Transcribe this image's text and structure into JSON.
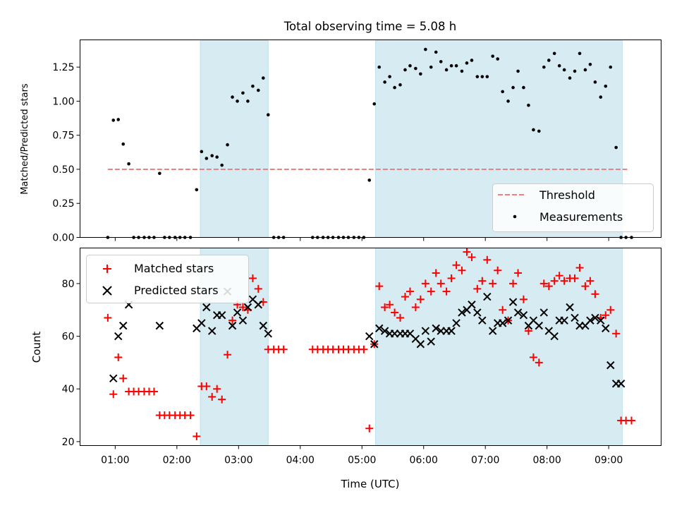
{
  "figure": {
    "title": "Total observing time = 5.08 h",
    "xlabel": "Time (UTC)"
  },
  "chart_data": [
    {
      "type": "scatter",
      "ylabel": "Matched/Predicted stars",
      "xlim": [
        0.43,
        9.85
      ],
      "ylim": [
        0,
        1.45
      ],
      "grid": false,
      "legend": {
        "position": "lower-right",
        "entries": [
          "Threshold",
          "Measurements"
        ]
      },
      "yticks": [
        0,
        0.25,
        0.5,
        0.75,
        1.0,
        1.25
      ],
      "ytick_labels": [
        "0.00",
        "0.25",
        "0.50",
        "0.75",
        "1.00",
        "1.25"
      ],
      "shaded_spans": [
        [
          2.38,
          3.48
        ],
        [
          5.22,
          9.22
        ]
      ],
      "threshold": {
        "name": "Threshold",
        "y": 0.5,
        "x_range": [
          0.88,
          9.3
        ],
        "color": "#f08080",
        "style": "dashed"
      },
      "series": [
        {
          "name": "Measurements",
          "color": "#000000",
          "marker": "dot",
          "x": [
            0.88,
            0.97,
            1.05,
            1.13,
            1.22,
            1.3,
            1.38,
            1.47,
            1.55,
            1.63,
            1.72,
            1.8,
            1.88,
            1.97,
            2.05,
            2.13,
            2.22,
            2.32,
            2.4,
            2.48,
            2.57,
            2.65,
            2.73,
            2.82,
            2.9,
            2.98,
            3.07,
            3.15,
            3.23,
            3.32,
            3.4,
            3.48,
            3.57,
            3.65,
            3.73,
            4.2,
            4.28,
            4.37,
            4.45,
            4.53,
            4.62,
            4.7,
            4.78,
            4.87,
            4.95,
            5.03,
            5.12,
            5.2,
            5.28,
            5.37,
            5.45,
            5.53,
            5.62,
            5.7,
            5.78,
            5.87,
            5.95,
            6.03,
            6.12,
            6.2,
            6.28,
            6.37,
            6.45,
            6.53,
            6.62,
            6.7,
            6.78,
            6.87,
            6.95,
            7.03,
            7.12,
            7.2,
            7.28,
            7.37,
            7.45,
            7.53,
            7.62,
            7.7,
            7.78,
            7.87,
            7.95,
            8.03,
            8.12,
            8.2,
            8.28,
            8.37,
            8.45,
            8.53,
            8.62,
            8.7,
            8.78,
            8.87,
            8.95,
            9.03,
            9.12,
            9.2,
            9.28,
            9.37
          ],
          "y": [
            0,
            0.86,
            0.865,
            0.685,
            0.54,
            0,
            0,
            0,
            0,
            0,
            0.47,
            0,
            0,
            0,
            0,
            0,
            0,
            0.35,
            0.63,
            0.58,
            0.6,
            0.59,
            0.53,
            0.68,
            1.03,
            1.0,
            1.06,
            1.0,
            1.11,
            1.08,
            1.17,
            0.9,
            0,
            0,
            0,
            0,
            0,
            0,
            0,
            0,
            0,
            0,
            0,
            0,
            0,
            0,
            0.42,
            0.98,
            1.25,
            1.14,
            1.18,
            1.1,
            1.12,
            1.23,
            1.26,
            1.24,
            1.2,
            1.38,
            1.25,
            1.36,
            1.29,
            1.23,
            1.26,
            1.26,
            1.22,
            1.28,
            1.3,
            1.18,
            1.18,
            1.18,
            1.33,
            1.31,
            1.07,
            1.0,
            1.1,
            1.22,
            1.1,
            0.97,
            0.79,
            0.78,
            1.25,
            1.3,
            1.35,
            1.26,
            1.23,
            1.17,
            1.22,
            1.35,
            1.23,
            1.27,
            1.14,
            1.03,
            1.11,
            1.25,
            0.66,
            0,
            0,
            0
          ]
        }
      ]
    },
    {
      "type": "scatter",
      "ylabel": "Count",
      "xlim": [
        0.43,
        9.85
      ],
      "ylim": [
        18.5,
        93.5
      ],
      "grid": false,
      "legend": {
        "position": "top-left",
        "entries": [
          "Matched stars",
          "Predicted stars"
        ]
      },
      "yticks": [
        20,
        40,
        60,
        80
      ],
      "ytick_labels": [
        "20",
        "40",
        "60",
        "80"
      ],
      "xticks": [
        1,
        2,
        3,
        4,
        5,
        6,
        7,
        8,
        9
      ],
      "xtick_labels": [
        "01:00",
        "02:00",
        "03:00",
        "04:00",
        "05:00",
        "06:00",
        "07:00",
        "08:00",
        "09:00"
      ],
      "shaded_spans": [
        [
          2.38,
          3.48
        ],
        [
          5.22,
          9.22
        ]
      ],
      "series": [
        {
          "name": "Matched stars",
          "color": "#ff0000",
          "marker": "plus",
          "x": [
            0.88,
            0.97,
            1.05,
            1.13,
            1.22,
            1.3,
            1.38,
            1.47,
            1.55,
            1.63,
            1.72,
            1.8,
            1.88,
            1.97,
            2.05,
            2.13,
            2.22,
            2.32,
            2.4,
            2.48,
            2.57,
            2.65,
            2.73,
            2.82,
            2.9,
            2.98,
            3.07,
            3.15,
            3.23,
            3.32,
            3.4,
            3.48,
            3.57,
            3.65,
            3.73,
            4.2,
            4.28,
            4.37,
            4.45,
            4.53,
            4.62,
            4.7,
            4.78,
            4.87,
            4.95,
            5.03,
            5.12,
            5.2,
            5.28,
            5.37,
            5.45,
            5.53,
            5.62,
            5.7,
            5.78,
            5.87,
            5.95,
            6.03,
            6.12,
            6.2,
            6.28,
            6.37,
            6.45,
            6.53,
            6.62,
            6.7,
            6.78,
            6.87,
            6.95,
            7.03,
            7.12,
            7.2,
            7.28,
            7.37,
            7.45,
            7.53,
            7.62,
            7.7,
            7.78,
            7.87,
            7.95,
            8.03,
            8.12,
            8.2,
            8.28,
            8.37,
            8.45,
            8.53,
            8.62,
            8.7,
            8.78,
            8.87,
            8.95,
            9.03,
            9.12,
            9.2,
            9.28,
            9.37
          ],
          "y": [
            67,
            38,
            52,
            44,
            39,
            39,
            39,
            39,
            39,
            39,
            30,
            30,
            30,
            30,
            30,
            30,
            30,
            22,
            41,
            41,
            37,
            40,
            36,
            53,
            66,
            72,
            71,
            70,
            82,
            78,
            73,
            55,
            55,
            55,
            55,
            55,
            55,
            55,
            55,
            55,
            55,
            55,
            55,
            55,
            55,
            55,
            25,
            57,
            79,
            71,
            72,
            69,
            67,
            75,
            77,
            71,
            74,
            80,
            77,
            84,
            80,
            77,
            82,
            87,
            85,
            92,
            90,
            78,
            81,
            89,
            80,
            85,
            70,
            66,
            80,
            84,
            74,
            62,
            52,
            50,
            80,
            79,
            81,
            83,
            81,
            82,
            82,
            86,
            79,
            81,
            76,
            67,
            68,
            70,
            61,
            28,
            28,
            28
          ]
        },
        {
          "name": "Predicted stars",
          "color": "#000000",
          "marker": "x",
          "x": [
            0.97,
            1.05,
            1.13,
            1.22,
            1.72,
            2.32,
            2.4,
            2.48,
            2.57,
            2.65,
            2.73,
            2.82,
            2.9,
            2.98,
            3.07,
            3.15,
            3.23,
            3.32,
            3.4,
            3.48,
            5.12,
            5.2,
            5.28,
            5.37,
            5.45,
            5.53,
            5.62,
            5.7,
            5.78,
            5.87,
            5.95,
            6.03,
            6.12,
            6.2,
            6.28,
            6.37,
            6.45,
            6.53,
            6.62,
            6.7,
            6.78,
            6.87,
            6.95,
            7.03,
            7.12,
            7.2,
            7.28,
            7.37,
            7.45,
            7.53,
            7.62,
            7.7,
            7.78,
            7.87,
            7.95,
            8.03,
            8.12,
            8.2,
            8.28,
            8.37,
            8.45,
            8.53,
            8.62,
            8.7,
            8.78,
            8.87,
            8.95,
            9.03,
            9.12,
            9.2
          ],
          "y": [
            44,
            60,
            64,
            72,
            64,
            63,
            65,
            71,
            62,
            68,
            68,
            77,
            64,
            69,
            66,
            71,
            74,
            72,
            64,
            61,
            60,
            57,
            63,
            62,
            61,
            61,
            61,
            61,
            61,
            59,
            57,
            62,
            58,
            63,
            62,
            62,
            62,
            65,
            69,
            70,
            72,
            69,
            66,
            75,
            62,
            65,
            65,
            66,
            73,
            69,
            68,
            64,
            66,
            64,
            69,
            62,
            60,
            66,
            66,
            71,
            67,
            64,
            64,
            66,
            67,
            66,
            63,
            49,
            42,
            42
          ]
        }
      ]
    }
  ]
}
